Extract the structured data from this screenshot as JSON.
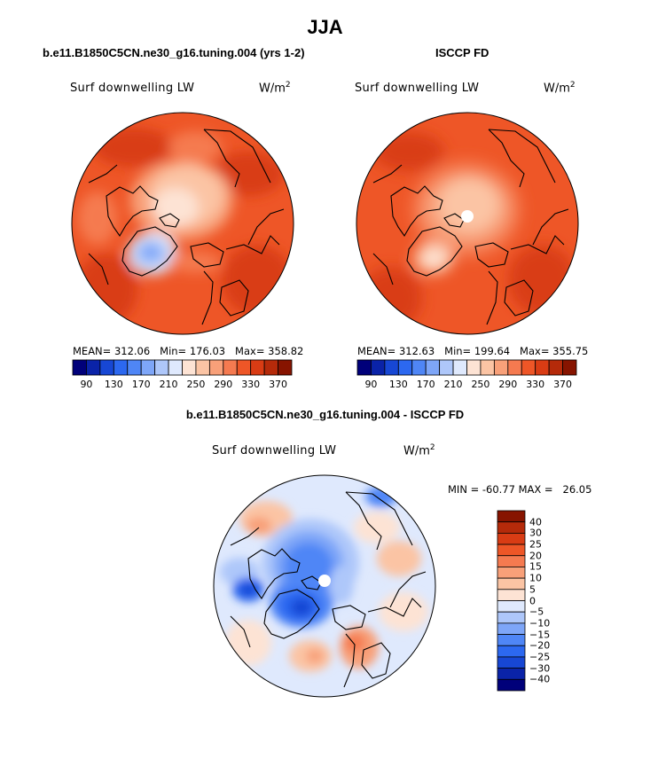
{
  "figure": {
    "title": "JJA"
  },
  "panels": {
    "model": {
      "subtitle": "b.e11.B1850C5CN.ne30_g16.tuning.004 (yrs 1-2)",
      "variable": "Surf downwelling LW",
      "units_base": "W/m",
      "units_exp": "2",
      "stats": "MEAN= 312.06   Min= 176.03   Max= 358.82"
    },
    "obs": {
      "subtitle": "ISCCP FD",
      "variable": "Surf downwelling LW",
      "units_base": "W/m",
      "units_exp": "2",
      "stats": "MEAN= 312.63   Min= 199.64   Max= 355.75"
    },
    "diff": {
      "subtitle": "b.e11.B1850C5CN.ne30_g16.tuning.004 - ISCCP FD",
      "variable": "Surf downwelling LW",
      "units_base": "W/m",
      "units_exp": "2",
      "stats": "MIN = -60.77 MAX =   26.05"
    }
  },
  "chart_data": [
    {
      "type": "heatmap",
      "title": "b.e11.B1850C5CN.ne30_g16.tuning.004 (yrs 1-2)",
      "projection": "polar stereographic (north pole)",
      "variable": "Surf downwelling LW",
      "units": "W/m^2",
      "mean": 312.06,
      "min": 176.03,
      "max": 358.82,
      "colorbar": {
        "levels": [
          90,
          110,
          130,
          150,
          170,
          190,
          210,
          230,
          250,
          270,
          290,
          310,
          330,
          350,
          370
        ],
        "tick_labels": [
          "90",
          "130",
          "170",
          "210",
          "250",
          "290",
          "330",
          "370"
        ],
        "colors": [
          "#00007a",
          "#0a23a8",
          "#1747d4",
          "#2c68f0",
          "#4f86f6",
          "#7ea6f8",
          "#aec7fa",
          "#dfe9fd",
          "#fde3d4",
          "#fbc4a4",
          "#f8a079",
          "#f57a50",
          "#ee5627",
          "#d93c14",
          "#b52a0a",
          "#871400"
        ]
      }
    },
    {
      "type": "heatmap",
      "title": "ISCCP FD",
      "projection": "polar stereographic (north pole)",
      "variable": "Surf downwelling LW",
      "units": "W/m^2",
      "mean": 312.63,
      "min": 199.64,
      "max": 355.75,
      "colorbar": {
        "levels": [
          90,
          110,
          130,
          150,
          170,
          190,
          210,
          230,
          250,
          270,
          290,
          310,
          330,
          350,
          370
        ],
        "tick_labels": [
          "90",
          "130",
          "170",
          "210",
          "250",
          "290",
          "330",
          "370"
        ],
        "colors": [
          "#00007a",
          "#0a23a8",
          "#1747d4",
          "#2c68f0",
          "#4f86f6",
          "#7ea6f8",
          "#aec7fa",
          "#dfe9fd",
          "#fde3d4",
          "#fbc4a4",
          "#f8a079",
          "#f57a50",
          "#ee5627",
          "#d93c14",
          "#b52a0a",
          "#871400"
        ]
      }
    },
    {
      "type": "heatmap",
      "title": "b.e11.B1850C5CN.ne30_g16.tuning.004 - ISCCP FD",
      "projection": "polar stereographic (north pole)",
      "variable": "Surf downwelling LW",
      "units": "W/m^2",
      "min": -60.77,
      "max": 26.05,
      "colorbar": {
        "orientation": "vertical",
        "tick_labels": [
          "40",
          "30",
          "25",
          "20",
          "15",
          "10",
          "5",
          "0",
          "-5",
          "-10",
          "-15",
          "-20",
          "-25",
          "-30",
          "-40"
        ],
        "colors": [
          "#871400",
          "#b52a0a",
          "#d93c14",
          "#ee5627",
          "#f57a50",
          "#f8a079",
          "#fbc4a4",
          "#fde3d4",
          "#dfe9fd",
          "#aec7fa",
          "#7ea6f8",
          "#4f86f6",
          "#2c68f0",
          "#1747d4",
          "#0a23a8",
          "#00007a"
        ]
      }
    }
  ]
}
